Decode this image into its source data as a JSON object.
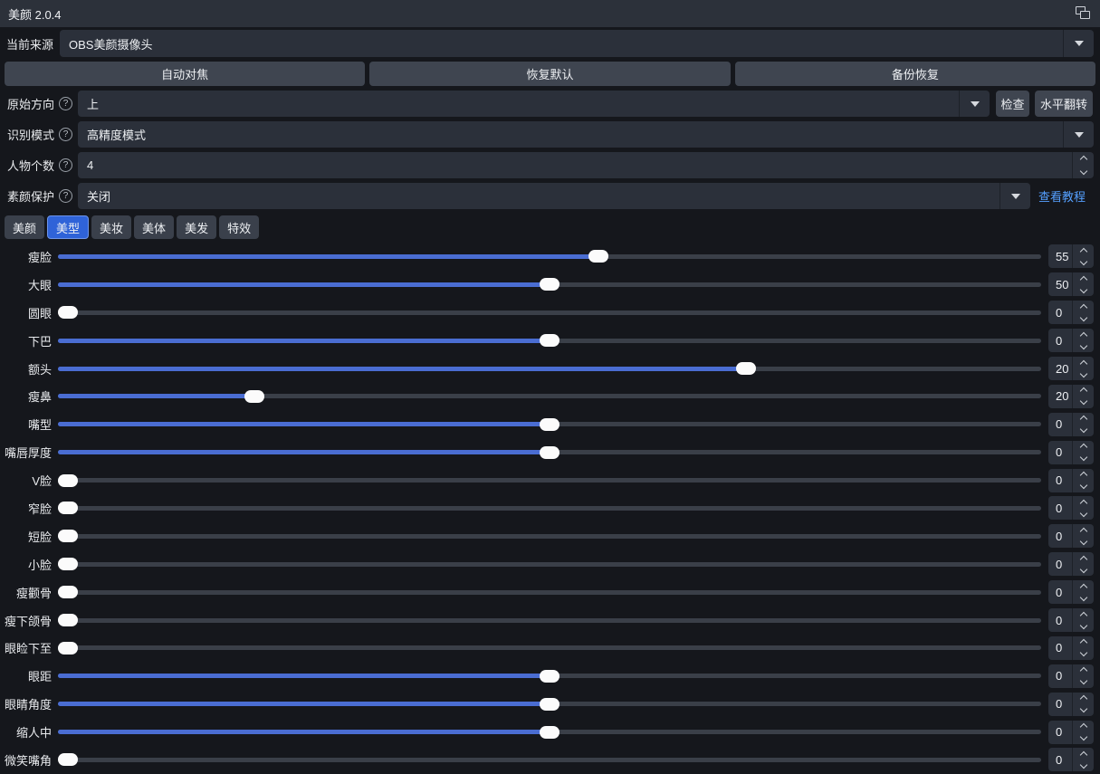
{
  "window": {
    "title": "美颜 2.0.4"
  },
  "colors": {
    "accent": "#4a6dd2",
    "tab_active": "#2f63d8",
    "link": "#55a0ff",
    "background": "#15171c",
    "titlebar": "#2c313a"
  },
  "source_row": {
    "label": "当前来源",
    "value": "OBS美颜摄像头"
  },
  "action_buttons": {
    "autofocus": "自动对焦",
    "restore_default": "恢复默认",
    "backup_restore": "备份恢复"
  },
  "orientation_row": {
    "label": "原始方向",
    "value": "上",
    "check_button": "检查",
    "flip_button": "水平翻转"
  },
  "recognition_row": {
    "label": "识别模式",
    "value": "高精度模式"
  },
  "people_row": {
    "label": "人物个数",
    "value": "4"
  },
  "protection_row": {
    "label": "素颜保护",
    "value": "关闭",
    "tutorial_link": "查看教程"
  },
  "tabs": [
    {
      "label": "美颜",
      "active": false
    },
    {
      "label": "美型",
      "active": true
    },
    {
      "label": "美妆",
      "active": false
    },
    {
      "label": "美体",
      "active": false
    },
    {
      "label": "美发",
      "active": false
    },
    {
      "label": "特效",
      "active": false
    }
  ],
  "sliders": [
    {
      "label": "瘦脸",
      "value": "55",
      "percent": 55
    },
    {
      "label": "大眼",
      "value": "50",
      "percent": 50
    },
    {
      "label": "圆眼",
      "value": "0",
      "percent": 0
    },
    {
      "label": "下巴",
      "value": "0",
      "percent": 50
    },
    {
      "label": "额头",
      "value": "20",
      "percent": 70
    },
    {
      "label": "瘦鼻",
      "value": "20",
      "percent": 20
    },
    {
      "label": "嘴型",
      "value": "0",
      "percent": 50
    },
    {
      "label": "嘴唇厚度",
      "value": "0",
      "percent": 50
    },
    {
      "label": "V脸",
      "value": "0",
      "percent": 0
    },
    {
      "label": "窄脸",
      "value": "0",
      "percent": 0
    },
    {
      "label": "短脸",
      "value": "0",
      "percent": 0
    },
    {
      "label": "小脸",
      "value": "0",
      "percent": 0
    },
    {
      "label": "瘦颧骨",
      "value": "0",
      "percent": 0
    },
    {
      "label": "瘦下颌骨",
      "value": "0",
      "percent": 0
    },
    {
      "label": "眼睑下至",
      "value": "0",
      "percent": 0
    },
    {
      "label": "眼距",
      "value": "0",
      "percent": 50
    },
    {
      "label": "眼睛角度",
      "value": "0",
      "percent": 50
    },
    {
      "label": "缩人中",
      "value": "0",
      "percent": 50
    },
    {
      "label": "微笑嘴角",
      "value": "0",
      "percent": 0
    }
  ]
}
